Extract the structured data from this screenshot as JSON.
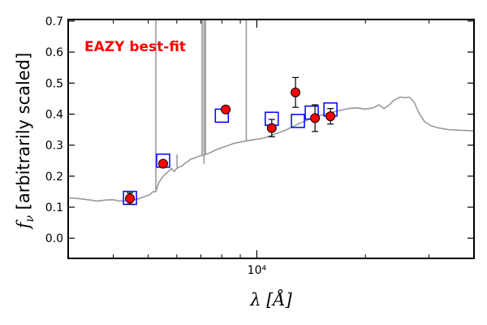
{
  "chart_data": {
    "type": "scatter",
    "annotation": "EAZY best-fit",
    "xlabel": "λ [Å]",
    "ylabel": "f_ν [arbitrarily scaled]",
    "x_scale": "log",
    "xlim": [
      3000,
      40000
    ],
    "ylim": [
      -0.065,
      0.705
    ],
    "x_tick_major": [
      {
        "value": 10000,
        "label": "10⁴"
      }
    ],
    "x_tick_minor": [
      4000,
      5000,
      6000,
      7000,
      8000,
      9000,
      20000,
      30000
    ],
    "y_ticks": [
      0.0,
      0.1,
      0.2,
      0.3,
      0.4,
      0.5,
      0.6,
      0.7
    ],
    "y_tick_labels": [
      "0.0",
      "0.1",
      "0.2",
      "0.3",
      "0.4",
      "0.5",
      "0.6",
      "0.7"
    ],
    "grid": false,
    "colors": {
      "observed": "#ff0000",
      "model_photometry": "#0000ff",
      "sed": "#999999",
      "annotation": "#ff0000"
    },
    "observed": [
      {
        "x": 4450,
        "y": 0.128,
        "yerr": 0.018
      },
      {
        "x": 5500,
        "y": 0.24,
        "yerr": 0.01
      },
      {
        "x": 8200,
        "y": 0.415,
        "yerr": 0.01
      },
      {
        "x": 11000,
        "y": 0.355,
        "yerr": 0.028
      },
      {
        "x": 12800,
        "y": 0.47,
        "yerr": 0.048
      },
      {
        "x": 14500,
        "y": 0.387,
        "yerr": 0.043
      },
      {
        "x": 16000,
        "y": 0.393,
        "yerr": 0.025
      }
    ],
    "model_photometry": [
      {
        "x": 4450,
        "y": 0.13
      },
      {
        "x": 5500,
        "y": 0.25
      },
      {
        "x": 8000,
        "y": 0.395
      },
      {
        "x": 11000,
        "y": 0.385
      },
      {
        "x": 13000,
        "y": 0.378
      },
      {
        "x": 14200,
        "y": 0.405
      },
      {
        "x": 16000,
        "y": 0.415
      }
    ],
    "sed": [
      [
        3000,
        0.13
      ],
      [
        3200,
        0.128
      ],
      [
        3400,
        0.124
      ],
      [
        3600,
        0.12
      ],
      [
        3800,
        0.123
      ],
      [
        4000,
        0.124
      ],
      [
        4150,
        0.12
      ],
      [
        4300,
        0.121
      ],
      [
        4500,
        0.122
      ],
      [
        4700,
        0.127
      ],
      [
        4900,
        0.135
      ],
      [
        5050,
        0.14
      ],
      [
        5150,
        0.15
      ],
      [
        5250,
        0.15
      ],
      [
        5350,
        0.18
      ],
      [
        5500,
        0.2
      ],
      [
        5650,
        0.212
      ],
      [
        5800,
        0.225
      ],
      [
        5900,
        0.215
      ],
      [
        6000,
        0.225
      ],
      [
        6100,
        0.23
      ],
      [
        6200,
        0.232
      ],
      [
        6300,
        0.24
      ],
      [
        6450,
        0.248
      ],
      [
        6550,
        0.255
      ],
      [
        6700,
        0.258
      ],
      [
        6900,
        0.264
      ],
      [
        7100,
        0.268
      ],
      [
        7300,
        0.272
      ],
      [
        7500,
        0.278
      ],
      [
        7700,
        0.285
      ],
      [
        8000,
        0.292
      ],
      [
        8300,
        0.298
      ],
      [
        8600,
        0.305
      ],
      [
        9000,
        0.31
      ],
      [
        9400,
        0.314
      ],
      [
        9800,
        0.318
      ],
      [
        10200,
        0.32
      ],
      [
        10600,
        0.325
      ],
      [
        11000,
        0.332
      ],
      [
        11500,
        0.34
      ],
      [
        12000,
        0.348
      ],
      [
        12500,
        0.358
      ],
      [
        13000,
        0.368
      ],
      [
        13500,
        0.376
      ],
      [
        14000,
        0.384
      ],
      [
        14500,
        0.39
      ],
      [
        15000,
        0.396
      ],
      [
        15500,
        0.4
      ],
      [
        16000,
        0.405
      ],
      [
        17000,
        0.412
      ],
      [
        18000,
        0.418
      ],
      [
        19000,
        0.42
      ],
      [
        20000,
        0.416
      ],
      [
        21000,
        0.42
      ],
      [
        21800,
        0.43
      ],
      [
        22500,
        0.418
      ],
      [
        23200,
        0.428
      ],
      [
        24000,
        0.445
      ],
      [
        25000,
        0.455
      ],
      [
        25800,
        0.453
      ],
      [
        26500,
        0.455
      ],
      [
        27300,
        0.438
      ],
      [
        28200,
        0.402
      ],
      [
        29200,
        0.375
      ],
      [
        30500,
        0.362
      ],
      [
        32000,
        0.355
      ],
      [
        34000,
        0.35
      ],
      [
        36500,
        0.348
      ],
      [
        40000,
        0.346
      ]
    ],
    "sed_lines": [
      {
        "x": 5250,
        "y_from": 0.15,
        "y_to": 0.705
      },
      {
        "x": 6010,
        "y_from": 0.228,
        "y_to": 0.27
      },
      {
        "x": 7050,
        "y_from": 0.265,
        "y_to": 0.705
      },
      {
        "x": 7140,
        "y_from": 0.24,
        "y_to": 0.705
      },
      {
        "x": 7210,
        "y_from": 0.268,
        "y_to": 0.705
      },
      {
        "x": 9350,
        "y_from": 0.313,
        "y_to": 0.705
      }
    ]
  }
}
